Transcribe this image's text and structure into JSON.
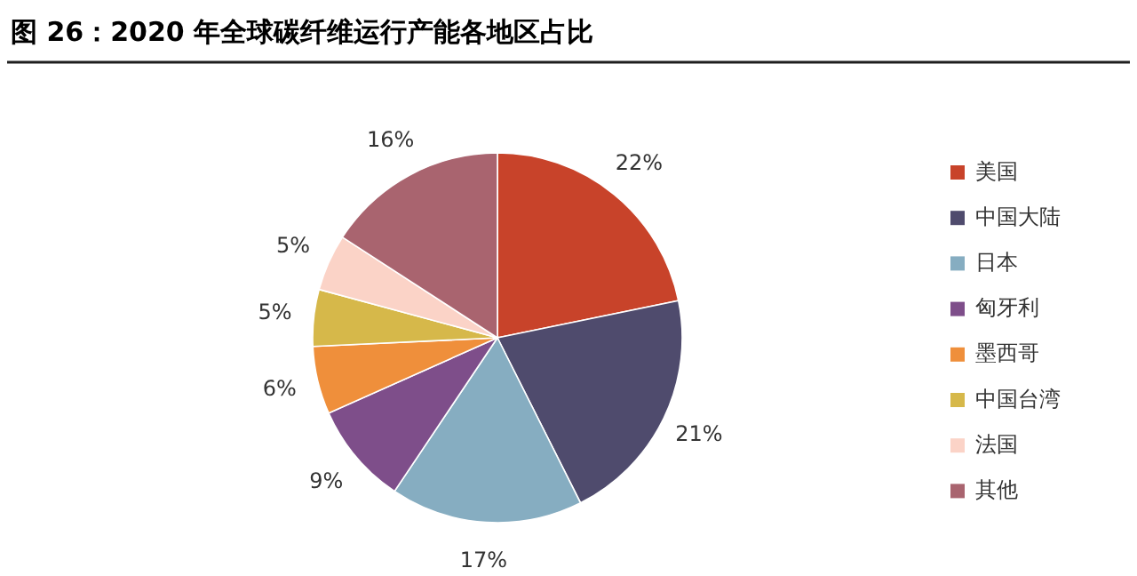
{
  "chart_data": {
    "type": "pie",
    "title": "图 26：2020 年全球碳纤维运行产能各地区占比",
    "categories": [
      "美国",
      "中国大陆",
      "日本",
      "匈牙利",
      "墨西哥",
      "中国台湾",
      "法国",
      "其他"
    ],
    "values": [
      22,
      21,
      17,
      9,
      6,
      5,
      5,
      16
    ],
    "value_labels": [
      "22%",
      "21%",
      "17%",
      "9%",
      "6%",
      "5%",
      "5%",
      "16%"
    ],
    "colors": [
      "#c8432a",
      "#4f4b6d",
      "#86adc1",
      "#7e4e8a",
      "#ef8f3b",
      "#d6b84a",
      "#fbd3c7",
      "#a9646f"
    ],
    "legend": "right"
  }
}
